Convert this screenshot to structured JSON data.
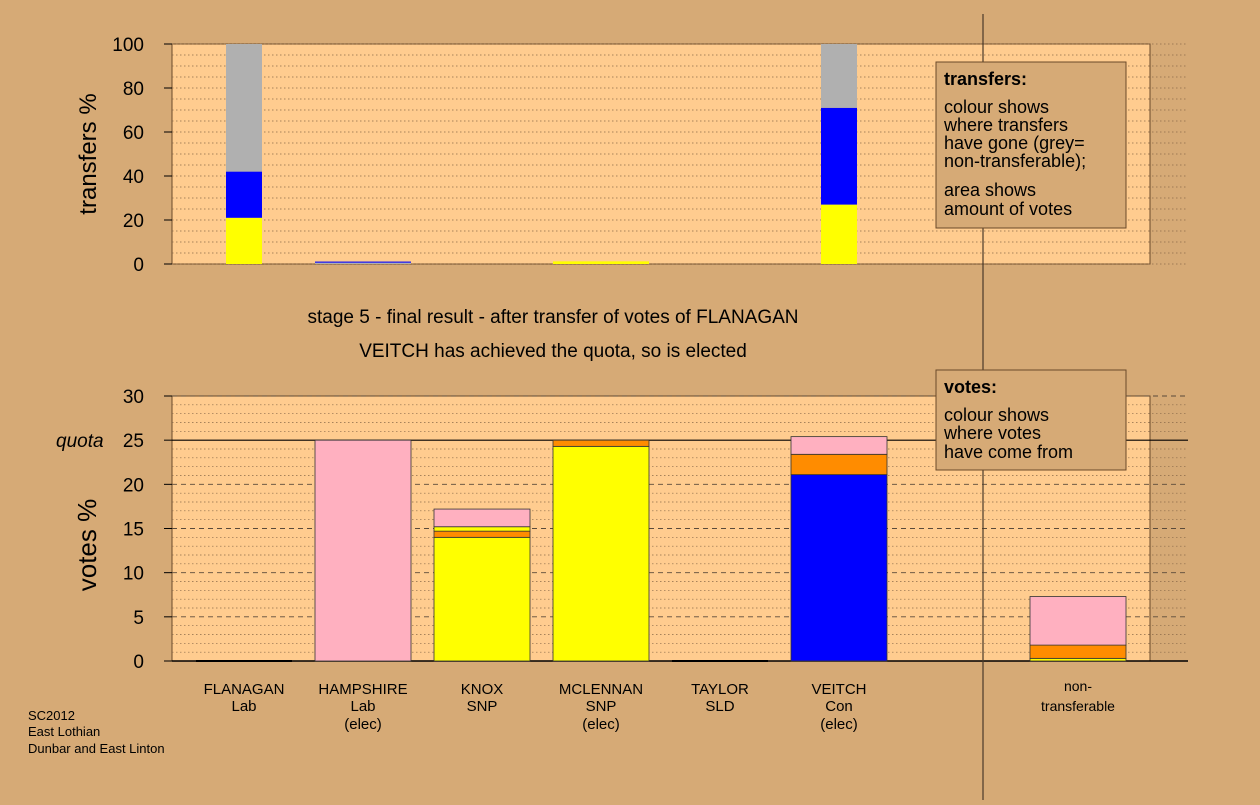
{
  "colors": {
    "background": "#d6aa76",
    "plot_bg": "#ffcc8f",
    "legend_bg": "#d6aa76",
    "yellow": "#ffff00",
    "blue": "#0000ff",
    "grey": "#b0b0b0",
    "pink": "#ffb0c0",
    "orange": "#ff8c00"
  },
  "title": {
    "stage": "stage 5 - final result - after transfer of votes of FLANAGAN",
    "status": "VEITCH has achieved the quota, so is elected"
  },
  "footer": [
    "SC2012",
    "East Lothian",
    "Dunbar and East Linton"
  ],
  "candidates": [
    {
      "name": "FLANAGAN",
      "party": "Lab",
      "note": ""
    },
    {
      "name": "HAMPSHIRE",
      "party": "Lab",
      "note": "(elec)"
    },
    {
      "name": "KNOX",
      "party": "SNP",
      "note": ""
    },
    {
      "name": "MCLENNAN",
      "party": "SNP",
      "note": "(elec)"
    },
    {
      "name": "TAYLOR",
      "party": "SLD",
      "note": ""
    },
    {
      "name": "VEITCH",
      "party": "Con",
      "note": "(elec)"
    }
  ],
  "nontransferable_label": [
    "non-",
    "transferable"
  ],
  "legends": {
    "transfers": {
      "title": "transfers:",
      "lines": [
        "colour shows",
        "where transfers",
        "have gone (grey=",
        "non-transferable);",
        "area shows",
        "amount of votes"
      ]
    },
    "votes": {
      "title": "votes:",
      "lines": [
        "colour shows",
        "where votes",
        "have come from"
      ]
    }
  },
  "chart_data": [
    {
      "type": "bar",
      "subtype": "stacked",
      "ylabel": "transfers %",
      "ylim": [
        0,
        100
      ],
      "yticks": [
        0,
        20,
        40,
        60,
        80,
        100
      ],
      "grid": true,
      "bars": [
        {
          "slot": 0,
          "wide": false,
          "segments": [
            {
              "value": 21,
              "color": "#ffff00"
            },
            {
              "value": 21,
              "color": "#0000ff"
            },
            {
              "value": 58,
              "color": "#b0b0b0"
            }
          ]
        },
        {
          "slot": 1,
          "wide": true,
          "segments": [
            {
              "value": 0.6,
              "color": "#b0b0b0"
            },
            {
              "value": 0.5,
              "color": "#0000ff"
            }
          ]
        },
        {
          "slot": 3,
          "wide": true,
          "segments": [
            {
              "value": 1.2,
              "color": "#ffff00"
            }
          ]
        },
        {
          "slot": 5,
          "wide": false,
          "segments": [
            {
              "value": 27,
              "color": "#ffff00"
            },
            {
              "value": 44,
              "color": "#0000ff"
            },
            {
              "value": 29,
              "color": "#b0b0b0"
            }
          ]
        }
      ]
    },
    {
      "type": "bar",
      "subtype": "stacked",
      "ylabel": "votes %",
      "ylim": [
        0,
        30
      ],
      "yticks": [
        0,
        5,
        10,
        15,
        20,
        25,
        30
      ],
      "quota": 25,
      "quota_label": "quota",
      "grid": true,
      "bars": [
        {
          "slot": 0,
          "segments": []
        },
        {
          "slot": 1,
          "segments": [
            {
              "value": 25.0,
              "color": "#ffb0c0"
            }
          ]
        },
        {
          "slot": 2,
          "segments": [
            {
              "value": 14.0,
              "color": "#ffff00"
            },
            {
              "value": 0.7,
              "color": "#ff8c00"
            },
            {
              "value": 0.5,
              "color": "#ffff00"
            },
            {
              "value": 2.0,
              "color": "#ffb0c0"
            }
          ]
        },
        {
          "slot": 3,
          "segments": [
            {
              "value": 24.3,
              "color": "#ffff00"
            },
            {
              "value": 0.7,
              "color": "#ff8c00"
            }
          ]
        },
        {
          "slot": 4,
          "segments": []
        },
        {
          "slot": 5,
          "segments": [
            {
              "value": 21.1,
              "color": "#0000ff"
            },
            {
              "value": 2.3,
              "color": "#ff8c00"
            },
            {
              "value": 2.0,
              "color": "#ffb0c0"
            }
          ]
        },
        {
          "slot": 6,
          "segments": [
            {
              "value": 0.3,
              "color": "#ffff00"
            },
            {
              "value": 1.5,
              "color": "#ff8c00"
            },
            {
              "value": 5.5,
              "color": "#ffb0c0"
            }
          ]
        }
      ]
    }
  ]
}
